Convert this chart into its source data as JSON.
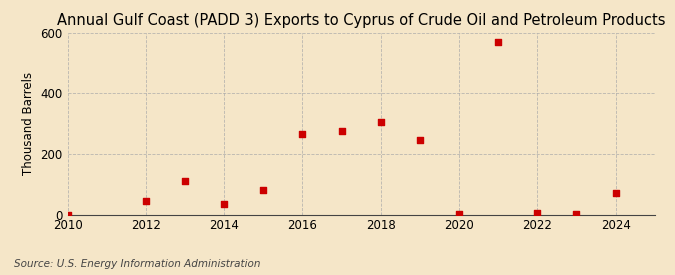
{
  "title": "Annual Gulf Coast (PADD 3) Exports to Cyprus of Crude Oil and Petroleum Products",
  "ylabel": "Thousand Barrels",
  "source_text": "Source: U.S. Energy Information Administration",
  "background_color": "#f5e6c8",
  "plot_background_color": "#f5e6c8",
  "marker_color": "#cc0000",
  "grid_color": "#aaaaaa",
  "x_data": [
    2010,
    2012,
    2013,
    2014,
    2015,
    2016,
    2017,
    2018,
    2019,
    2020,
    2021,
    2022,
    2023,
    2024
  ],
  "y_data": [
    0,
    43,
    110,
    36,
    82,
    265,
    275,
    305,
    247,
    2,
    570,
    5,
    3,
    70
  ],
  "xlim": [
    2010,
    2025
  ],
  "ylim": [
    0,
    600
  ],
  "yticks": [
    0,
    200,
    400,
    600
  ],
  "xticks": [
    2010,
    2012,
    2014,
    2016,
    2018,
    2020,
    2022,
    2024
  ],
  "title_fontsize": 10.5,
  "label_fontsize": 8.5,
  "tick_fontsize": 8.5,
  "source_fontsize": 7.5,
  "marker_size": 5
}
